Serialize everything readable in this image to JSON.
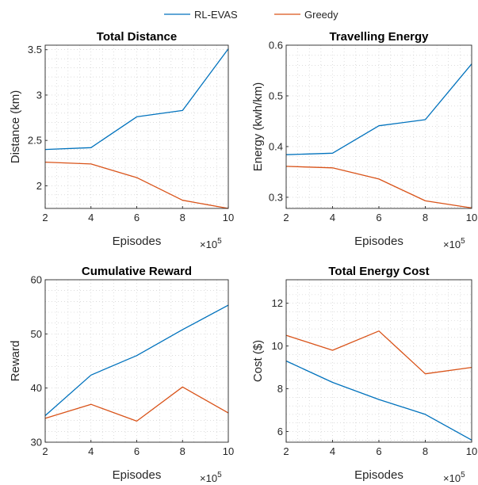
{
  "legend": {
    "entries": [
      {
        "name": "RL-EVAS",
        "color": "#0072BD"
      },
      {
        "name": "Greedy",
        "color": "#D95319"
      }
    ]
  },
  "chart_data": [
    {
      "type": "line",
      "title": "Total Distance",
      "xlabel": "Episodes",
      "ylabel": "Distance (km)",
      "x_multiplier": "×10",
      "x_exponent": "5",
      "x": [
        2,
        4,
        6,
        8,
        10
      ],
      "xlim": [
        2,
        10
      ],
      "ylim": [
        1.75,
        3.55
      ],
      "xticks": [
        2,
        4,
        6,
        8,
        10
      ],
      "yticks": [
        2,
        2.5,
        3,
        3.5
      ],
      "grid": "dotted minor",
      "series": [
        {
          "name": "RL-EVAS",
          "color": "#0072BD",
          "values": [
            2.4,
            2.42,
            2.76,
            2.83,
            3.51
          ]
        },
        {
          "name": "Greedy",
          "color": "#D95319",
          "values": [
            2.26,
            2.24,
            2.09,
            1.84,
            1.75
          ]
        }
      ]
    },
    {
      "type": "line",
      "title": "Travelling Energy",
      "xlabel": "Episodes",
      "ylabel": "Energy (kwh/km)",
      "x_multiplier": "×10",
      "x_exponent": "5",
      "x": [
        2,
        4,
        6,
        8,
        10
      ],
      "xlim": [
        2,
        10
      ],
      "ylim": [
        0.278,
        0.6
      ],
      "xticks": [
        2,
        4,
        6,
        8,
        10
      ],
      "yticks": [
        0.3,
        0.4,
        0.5,
        0.6
      ],
      "grid": "dotted minor",
      "series": [
        {
          "name": "RL-EVAS",
          "color": "#0072BD",
          "values": [
            0.384,
            0.387,
            0.441,
            0.453,
            0.563
          ]
        },
        {
          "name": "Greedy",
          "color": "#D95319",
          "values": [
            0.361,
            0.358,
            0.336,
            0.293,
            0.279
          ]
        }
      ]
    },
    {
      "type": "line",
      "title": "Cumulative Reward",
      "xlabel": "Episodes",
      "ylabel": "Reward",
      "x_multiplier": "×10",
      "x_exponent": "5",
      "x": [
        2,
        4,
        6,
        8,
        10
      ],
      "xlim": [
        2,
        10
      ],
      "ylim": [
        30,
        60
      ],
      "xticks": [
        2,
        4,
        6,
        8,
        10
      ],
      "yticks": [
        30,
        40,
        50,
        60
      ],
      "grid": "dotted minor",
      "series": [
        {
          "name": "RL-EVAS",
          "color": "#0072BD",
          "values": [
            34.9,
            42.4,
            46.0,
            50.8,
            55.3
          ]
        },
        {
          "name": "Greedy",
          "color": "#D95319",
          "values": [
            34.4,
            37.0,
            33.9,
            40.2,
            35.4
          ]
        }
      ]
    },
    {
      "type": "line",
      "title": "Total Energy Cost",
      "xlabel": "Episodes",
      "ylabel": "Cost ($)",
      "x_multiplier": "×10",
      "x_exponent": "5",
      "x": [
        2,
        4,
        6,
        8,
        10
      ],
      "xlim": [
        2,
        10
      ],
      "ylim": [
        5.5,
        13.1
      ],
      "xticks": [
        2,
        4,
        6,
        8,
        10
      ],
      "yticks": [
        6,
        8,
        10,
        12
      ],
      "grid": "dotted minor",
      "series": [
        {
          "name": "RL-EVAS",
          "color": "#0072BD",
          "values": [
            9.3,
            8.3,
            7.5,
            6.8,
            5.6
          ]
        },
        {
          "name": "Greedy",
          "color": "#D95319",
          "values": [
            10.5,
            9.8,
            10.7,
            8.7,
            9.0
          ]
        }
      ]
    }
  ]
}
